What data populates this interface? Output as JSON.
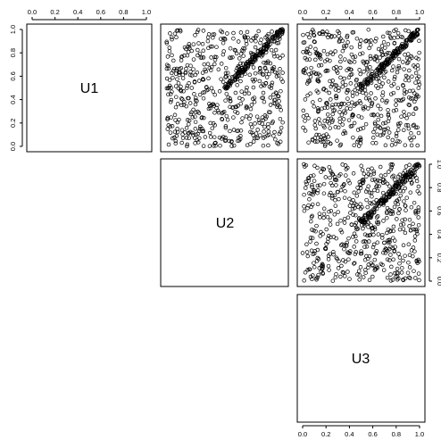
{
  "chart_data": {
    "type": "scatter",
    "variables": [
      "U1",
      "U2",
      "U3"
    ],
    "xlim": [
      0,
      1
    ],
    "ylim": [
      0,
      1
    ],
    "ticks": [
      0.0,
      0.2,
      0.4,
      0.6,
      0.8,
      1.0
    ],
    "tick_labels": [
      "0.0",
      "0.2",
      "0.4",
      "0.6",
      "0.8",
      "1.0"
    ],
    "grid": false,
    "legend": "none",
    "point_marker": "open-circle",
    "point_color": "#000000",
    "panels": [
      {
        "row": 1,
        "col": 2,
        "x_var": "U2",
        "y_var": "U1",
        "points_per_panel": 700,
        "notes": "uniform cloud with dense diagonal band from (0.5,0.5) to (1,1)"
      },
      {
        "row": 1,
        "col": 3,
        "x_var": "U3",
        "y_var": "U1",
        "points_per_panel": 700,
        "notes": "uniform cloud with dense diagonal band from (0.5,0.5) to (1,1)"
      },
      {
        "row": 2,
        "col": 3,
        "x_var": "U3",
        "y_var": "U2",
        "points_per_panel": 700,
        "notes": "uniform cloud with dense diagonal band from (0.5,0.5) to (1,1)"
      }
    ]
  }
}
